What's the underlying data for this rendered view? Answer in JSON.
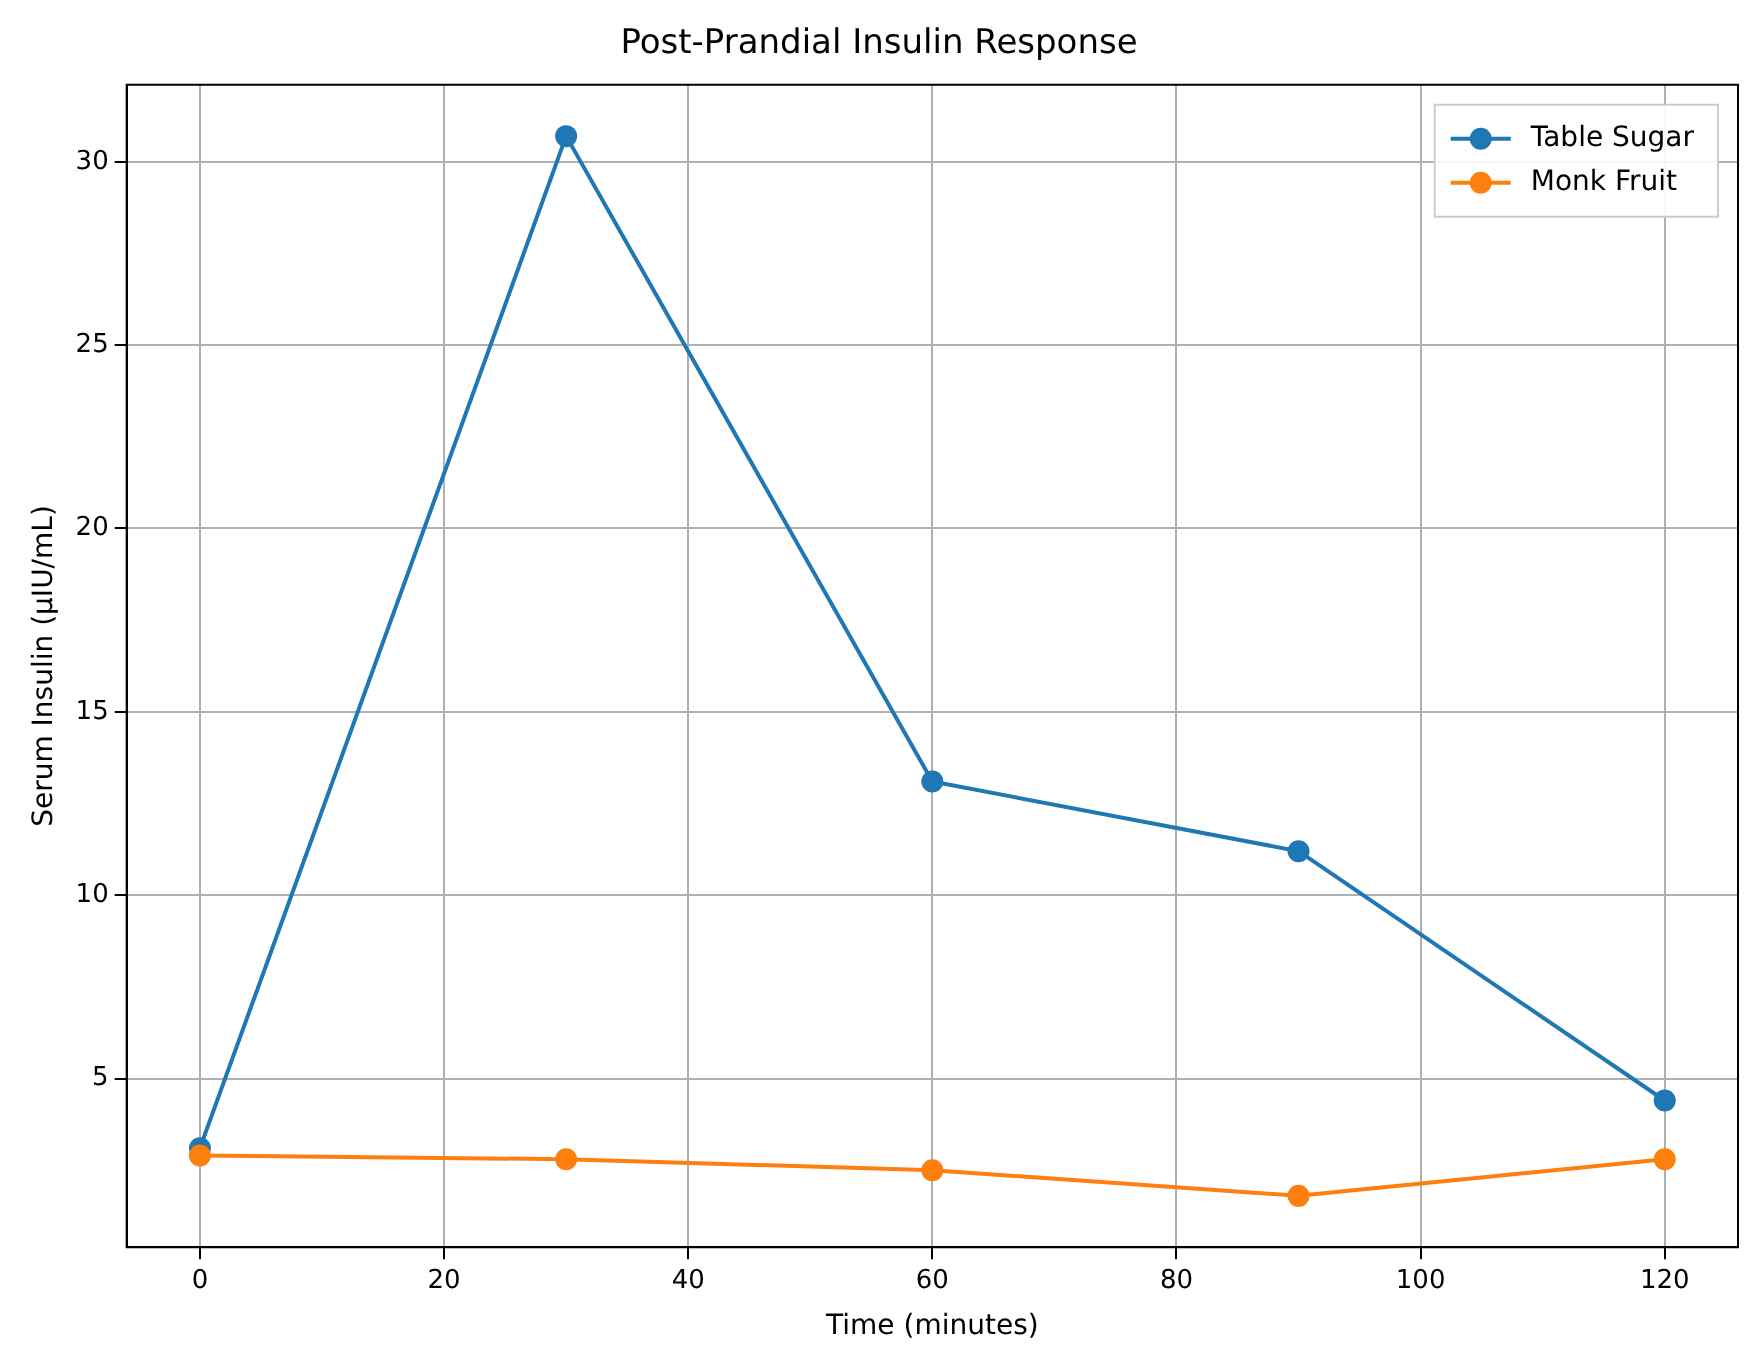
{
  "chart_data": {
    "type": "line",
    "title": "Post-Prandial Insulin Response",
    "xlabel": "Time (minutes)",
    "ylabel": "Serum Insulin (µIU/mL)",
    "x": [
      0,
      30,
      60,
      90,
      120
    ],
    "series": [
      {
        "name": "Table Sugar",
        "color": "#1f77b4",
        "values": [
          3.1,
          30.7,
          13.1,
          11.2,
          4.4
        ]
      },
      {
        "name": "Monk Fruit",
        "color": "#ff7f0e",
        "values": [
          2.9,
          2.8,
          2.5,
          1.8,
          2.8
        ]
      }
    ],
    "xlim": [
      -6,
      126
    ],
    "xticks": [
      0,
      20,
      40,
      60,
      80,
      100,
      120
    ],
    "ylim": [
      0.4,
      32.1
    ],
    "yticks": [
      5,
      10,
      15,
      20,
      25,
      30
    ],
    "grid": true,
    "legend": "top right",
    "marker": "circle",
    "line_style": "solid"
  }
}
